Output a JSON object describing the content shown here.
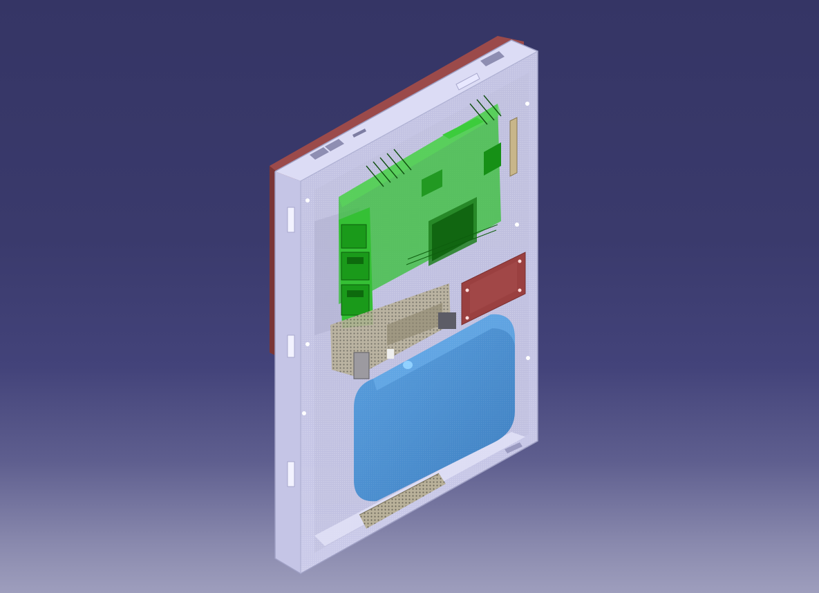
{
  "viewer": {
    "background_top": "#353565",
    "background_bottom": "#9e9ebd"
  },
  "model": {
    "enclosure_color": "#d7d7f2",
    "back_panel_color": "#9b4a4a",
    "pcb_main_color": "#2fbf2f",
    "pcb_secondary_color": "#b8b097",
    "connector_pad_color": "#9a4040",
    "battery_color": "#4a8ccd"
  }
}
